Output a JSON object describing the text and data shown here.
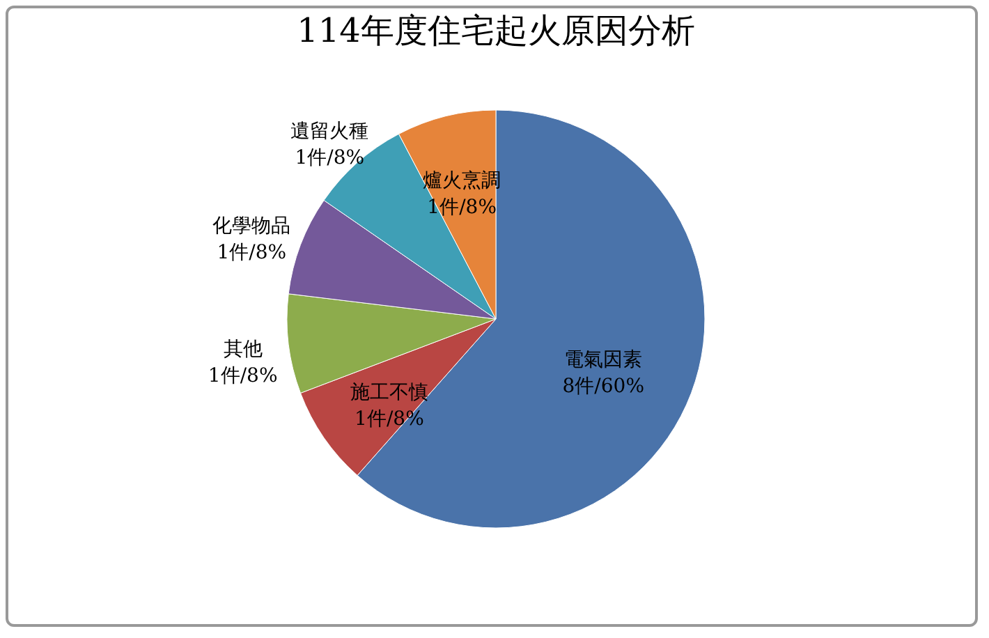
{
  "chart_data": {
    "type": "pie",
    "title": "114年度住宅起火原因分析",
    "categories": [
      "電氣因素",
      "施工不慎",
      "其他",
      "化學物品",
      "遺留火種",
      "爐火烹調"
    ],
    "values": [
      8,
      1,
      1,
      1,
      1,
      1
    ],
    "value_labels": [
      "8件/60%",
      "1件/8%",
      "1件/8%",
      "1件/8%",
      "1件/8%",
      "1件/8%"
    ],
    "colors": [
      "#4a73aa",
      "#b94643",
      "#8dac4c",
      "#74599a",
      "#3f9fb6",
      "#e6843a"
    ],
    "legend": false
  }
}
